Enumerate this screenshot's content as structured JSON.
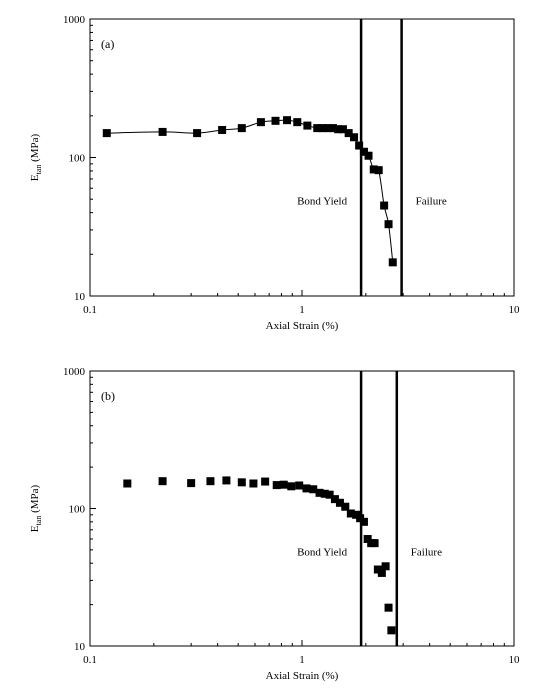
{
  "chart_data": [
    {
      "type": "scatter",
      "panel_label": "(a)",
      "xlabel": "Axial Strain (%)",
      "ylabel_main": "E",
      "ylabel_sub": "tan",
      "ylabel_unit": "(MPa)",
      "xscale": "log",
      "yscale": "log",
      "xlim": [
        0.1,
        10
      ],
      "ylim": [
        10,
        1000
      ],
      "x_ticks": [
        0.1,
        1,
        10
      ],
      "x_tick_labels": [
        "0.1",
        "1",
        "10"
      ],
      "y_ticks": [
        10,
        100,
        1000
      ],
      "y_tick_labels": [
        "10",
        "100",
        "1000"
      ],
      "grid": false,
      "has_fit_line": true,
      "series": [
        {
          "marker": "square",
          "x": [
            0.12,
            0.22,
            0.32,
            0.42,
            0.52,
            0.64,
            0.75,
            0.85,
            0.95,
            1.06,
            1.18,
            1.25,
            1.32,
            1.4,
            1.48,
            1.56,
            1.66,
            1.76,
            1.86,
            1.96,
            2.06,
            2.18,
            2.3,
            2.44,
            2.56,
            2.68
          ],
          "y": [
            150,
            153,
            150,
            158,
            163,
            180,
            184,
            186,
            180,
            170,
            163,
            163,
            163,
            163,
            160,
            160,
            150,
            140,
            122,
            110,
            103,
            82,
            81,
            45,
            33,
            17.5
          ]
        }
      ],
      "vlines": [
        {
          "x": 1.9,
          "label": "Bond Yield"
        },
        {
          "x": 2.95,
          "label": "Failure"
        }
      ]
    },
    {
      "type": "scatter",
      "panel_label": "(b)",
      "xlabel": "Axial Strain (%)",
      "ylabel_main": "E",
      "ylabel_sub": "tan",
      "ylabel_unit": "(MPa)",
      "xscale": "log",
      "yscale": "log",
      "xlim": [
        0.1,
        10
      ],
      "ylim": [
        10,
        1000
      ],
      "x_ticks": [
        0.1,
        1,
        10
      ],
      "x_tick_labels": [
        "0.1",
        "1",
        "10"
      ],
      "y_ticks": [
        10,
        100,
        1000
      ],
      "y_tick_labels": [
        "10",
        "100",
        "1000"
      ],
      "grid": false,
      "has_fit_line": false,
      "series": [
        {
          "marker": "square",
          "x": [
            0.15,
            0.22,
            0.3,
            0.37,
            0.44,
            0.52,
            0.59,
            0.67,
            0.76,
            0.82,
            0.89,
            0.97,
            1.05,
            1.13,
            1.21,
            1.28,
            1.35,
            1.43,
            1.51,
            1.6,
            1.7,
            1.8,
            1.88,
            1.96,
            2.04,
            2.12,
            2.2,
            2.28,
            2.38,
            2.48,
            2.56,
            2.64
          ],
          "y": [
            152,
            158,
            153,
            158,
            160,
            155,
            152,
            157,
            148,
            149,
            145,
            147,
            140,
            138,
            130,
            128,
            126,
            117,
            110,
            103,
            92,
            90,
            85,
            80,
            60,
            56,
            56,
            36,
            34,
            38,
            19,
            13
          ]
        }
      ],
      "vlines": [
        {
          "x": 1.9,
          "label": "Bond Yield"
        },
        {
          "x": 2.8,
          "label": "Failure"
        }
      ]
    }
  ]
}
